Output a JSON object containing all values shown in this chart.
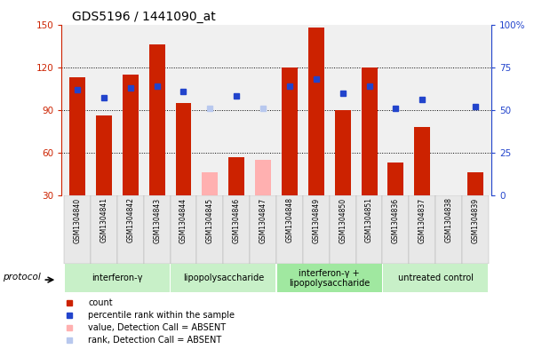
{
  "title": "GDS5196 / 1441090_at",
  "samples": [
    "GSM1304840",
    "GSM1304841",
    "GSM1304842",
    "GSM1304843",
    "GSM1304844",
    "GSM1304845",
    "GSM1304846",
    "GSM1304847",
    "GSM1304848",
    "GSM1304849",
    "GSM1304850",
    "GSM1304851",
    "GSM1304836",
    "GSM1304837",
    "GSM1304838",
    "GSM1304839"
  ],
  "count_values": [
    113,
    86,
    115,
    136,
    95,
    null,
    57,
    null,
    120,
    148,
    90,
    120,
    53,
    78,
    30,
    46
  ],
  "count_absent": [
    null,
    null,
    null,
    null,
    null,
    46,
    null,
    55,
    null,
    null,
    null,
    null,
    null,
    null,
    null,
    null
  ],
  "rank_values": [
    62,
    57,
    63,
    64,
    61,
    null,
    58,
    null,
    64,
    68,
    60,
    64,
    51,
    56,
    null,
    52
  ],
  "rank_absent": [
    null,
    null,
    null,
    null,
    null,
    51,
    null,
    51,
    null,
    null,
    null,
    null,
    null,
    null,
    null,
    null
  ],
  "protocols": [
    {
      "label": "interferon-γ",
      "start": 0,
      "end": 4,
      "color": "#c8f0c8"
    },
    {
      "label": "lipopolysaccharide",
      "start": 4,
      "end": 8,
      "color": "#c8f0c8"
    },
    {
      "label": "interferon-γ +\nlipopolysaccharide",
      "start": 8,
      "end": 12,
      "color": "#a0e8a0"
    },
    {
      "label": "untreated control",
      "start": 12,
      "end": 16,
      "color": "#c8f0c8"
    }
  ],
  "ylim_left": [
    30,
    150
  ],
  "ylim_right": [
    0,
    100
  ],
  "yticks_left": [
    30,
    60,
    90,
    120,
    150
  ],
  "yticks_right": [
    0,
    25,
    50,
    75,
    100
  ],
  "bar_color_red": "#cc2200",
  "bar_color_pink": "#ffb0b0",
  "dot_color_blue": "#2244cc",
  "dot_color_lightblue": "#b8c8ee",
  "bg_color": "#f0f0f0",
  "title_fontsize": 10
}
